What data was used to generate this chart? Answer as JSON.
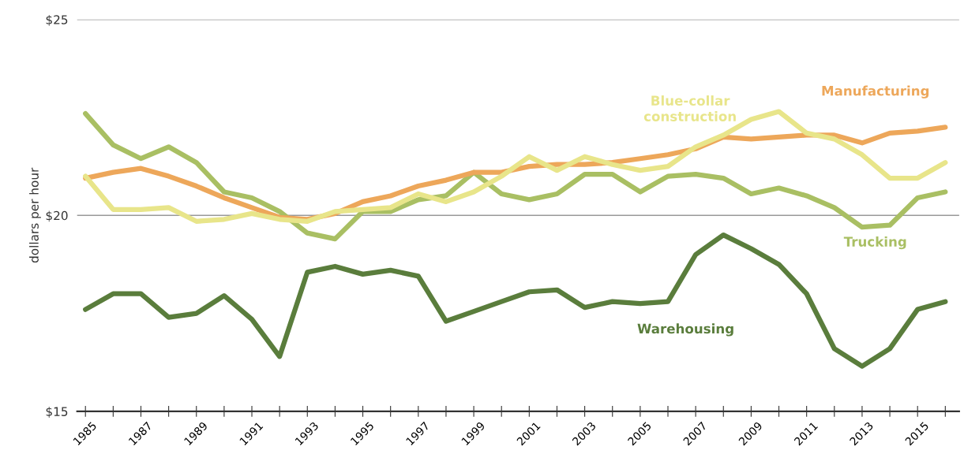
{
  "chart_data": {
    "type": "line",
    "ylabel": "dollars per hour",
    "x": [
      1985,
      1986,
      1987,
      1988,
      1989,
      1990,
      1991,
      1992,
      1993,
      1994,
      1995,
      1996,
      1997,
      1998,
      1999,
      2000,
      2001,
      2002,
      2003,
      2004,
      2005,
      2006,
      2007,
      2008,
      2009,
      2010,
      2011,
      2012,
      2013,
      2014,
      2015,
      2016
    ],
    "series": [
      {
        "name": "Trucking",
        "color": "#a9bf63",
        "values": [
          22.6,
          21.8,
          21.45,
          21.75,
          21.35,
          20.6,
          20.45,
          20.1,
          19.55,
          19.4,
          20.1,
          20.1,
          20.4,
          20.5,
          21.1,
          20.55,
          20.4,
          20.55,
          21.05,
          21.05,
          20.6,
          21.0,
          21.05,
          20.95,
          20.55,
          20.7,
          20.5,
          20.2,
          19.7,
          19.75,
          20.45,
          20.6
        ]
      },
      {
        "name": "Manufacturing",
        "color": "#eda75a",
        "values": [
          20.95,
          21.1,
          21.2,
          21.0,
          20.75,
          20.45,
          20.2,
          19.95,
          19.9,
          20.05,
          20.35,
          20.5,
          20.75,
          20.9,
          21.1,
          21.1,
          21.25,
          21.3,
          21.3,
          21.35,
          21.45,
          21.55,
          21.7,
          22.0,
          21.95,
          22.0,
          22.05,
          22.05,
          21.85,
          22.1,
          22.15,
          22.25
        ]
      },
      {
        "name": "Blue-collar\nconstruction",
        "color": "#e8e58a",
        "values": [
          21.0,
          20.15,
          20.15,
          20.2,
          19.85,
          19.9,
          20.05,
          19.9,
          19.85,
          20.1,
          20.15,
          20.2,
          20.55,
          20.35,
          20.6,
          21.0,
          21.5,
          21.15,
          21.5,
          21.3,
          21.15,
          21.25,
          21.75,
          22.05,
          22.45,
          22.65,
          22.1,
          21.95,
          21.55,
          20.95,
          20.95,
          21.35
        ]
      },
      {
        "name": "Warehousing",
        "color": "#5a7d3c",
        "values": [
          17.6,
          18.0,
          18.0,
          17.4,
          17.5,
          17.95,
          17.35,
          16.4,
          18.55,
          18.7,
          18.5,
          18.6,
          18.45,
          17.3,
          17.55,
          17.8,
          18.05,
          18.1,
          17.65,
          17.8,
          17.75,
          17.8,
          19.0,
          19.5,
          19.15,
          18.75,
          18.0,
          16.6,
          16.15,
          16.6,
          17.6,
          17.8
        ]
      }
    ],
    "xlim": [
      1984.7,
      2016.5
    ],
    "ylim": [
      15,
      25
    ],
    "xticks": [
      {
        "value": 1985,
        "label": "1985"
      },
      {
        "value": 1986,
        "label": null
      },
      {
        "value": 1987,
        "label": "1987"
      },
      {
        "value": 1988,
        "label": null
      },
      {
        "value": 1989,
        "label": "1989"
      },
      {
        "value": 1990,
        "label": null
      },
      {
        "value": 1991,
        "label": "1991"
      },
      {
        "value": 1992,
        "label": null
      },
      {
        "value": 1993,
        "label": "1993"
      },
      {
        "value": 1994,
        "label": null
      },
      {
        "value": 1995,
        "label": "1995"
      },
      {
        "value": 1996,
        "label": null
      },
      {
        "value": 1997,
        "label": "1997"
      },
      {
        "value": 1998,
        "label": null
      },
      {
        "value": 1999,
        "label": "1999"
      },
      {
        "value": 2000,
        "label": null
      },
      {
        "value": 2001,
        "label": "2001"
      },
      {
        "value": 2002,
        "label": null
      },
      {
        "value": 2003,
        "label": "2003"
      },
      {
        "value": 2004,
        "label": null
      },
      {
        "value": 2005,
        "label": "2005"
      },
      {
        "value": 2006,
        "label": null
      },
      {
        "value": 2007,
        "label": "2007"
      },
      {
        "value": 2008,
        "label": null
      },
      {
        "value": 2009,
        "label": "2009"
      },
      {
        "value": 2010,
        "label": null
      },
      {
        "value": 2011,
        "label": "2011"
      },
      {
        "value": 2012,
        "label": null
      },
      {
        "value": 2013,
        "label": "2013"
      },
      {
        "value": 2014,
        "label": null
      },
      {
        "value": 2015,
        "label": "2015"
      },
      {
        "value": 2016,
        "label": null
      }
    ],
    "yticks": [
      {
        "value": 15,
        "label": "$15"
      },
      {
        "value": 20,
        "label": "$20"
      },
      {
        "value": 25,
        "label": "$25"
      }
    ],
    "grid": "y",
    "legend": false,
    "marker": "none",
    "line_style": "solid"
  }
}
